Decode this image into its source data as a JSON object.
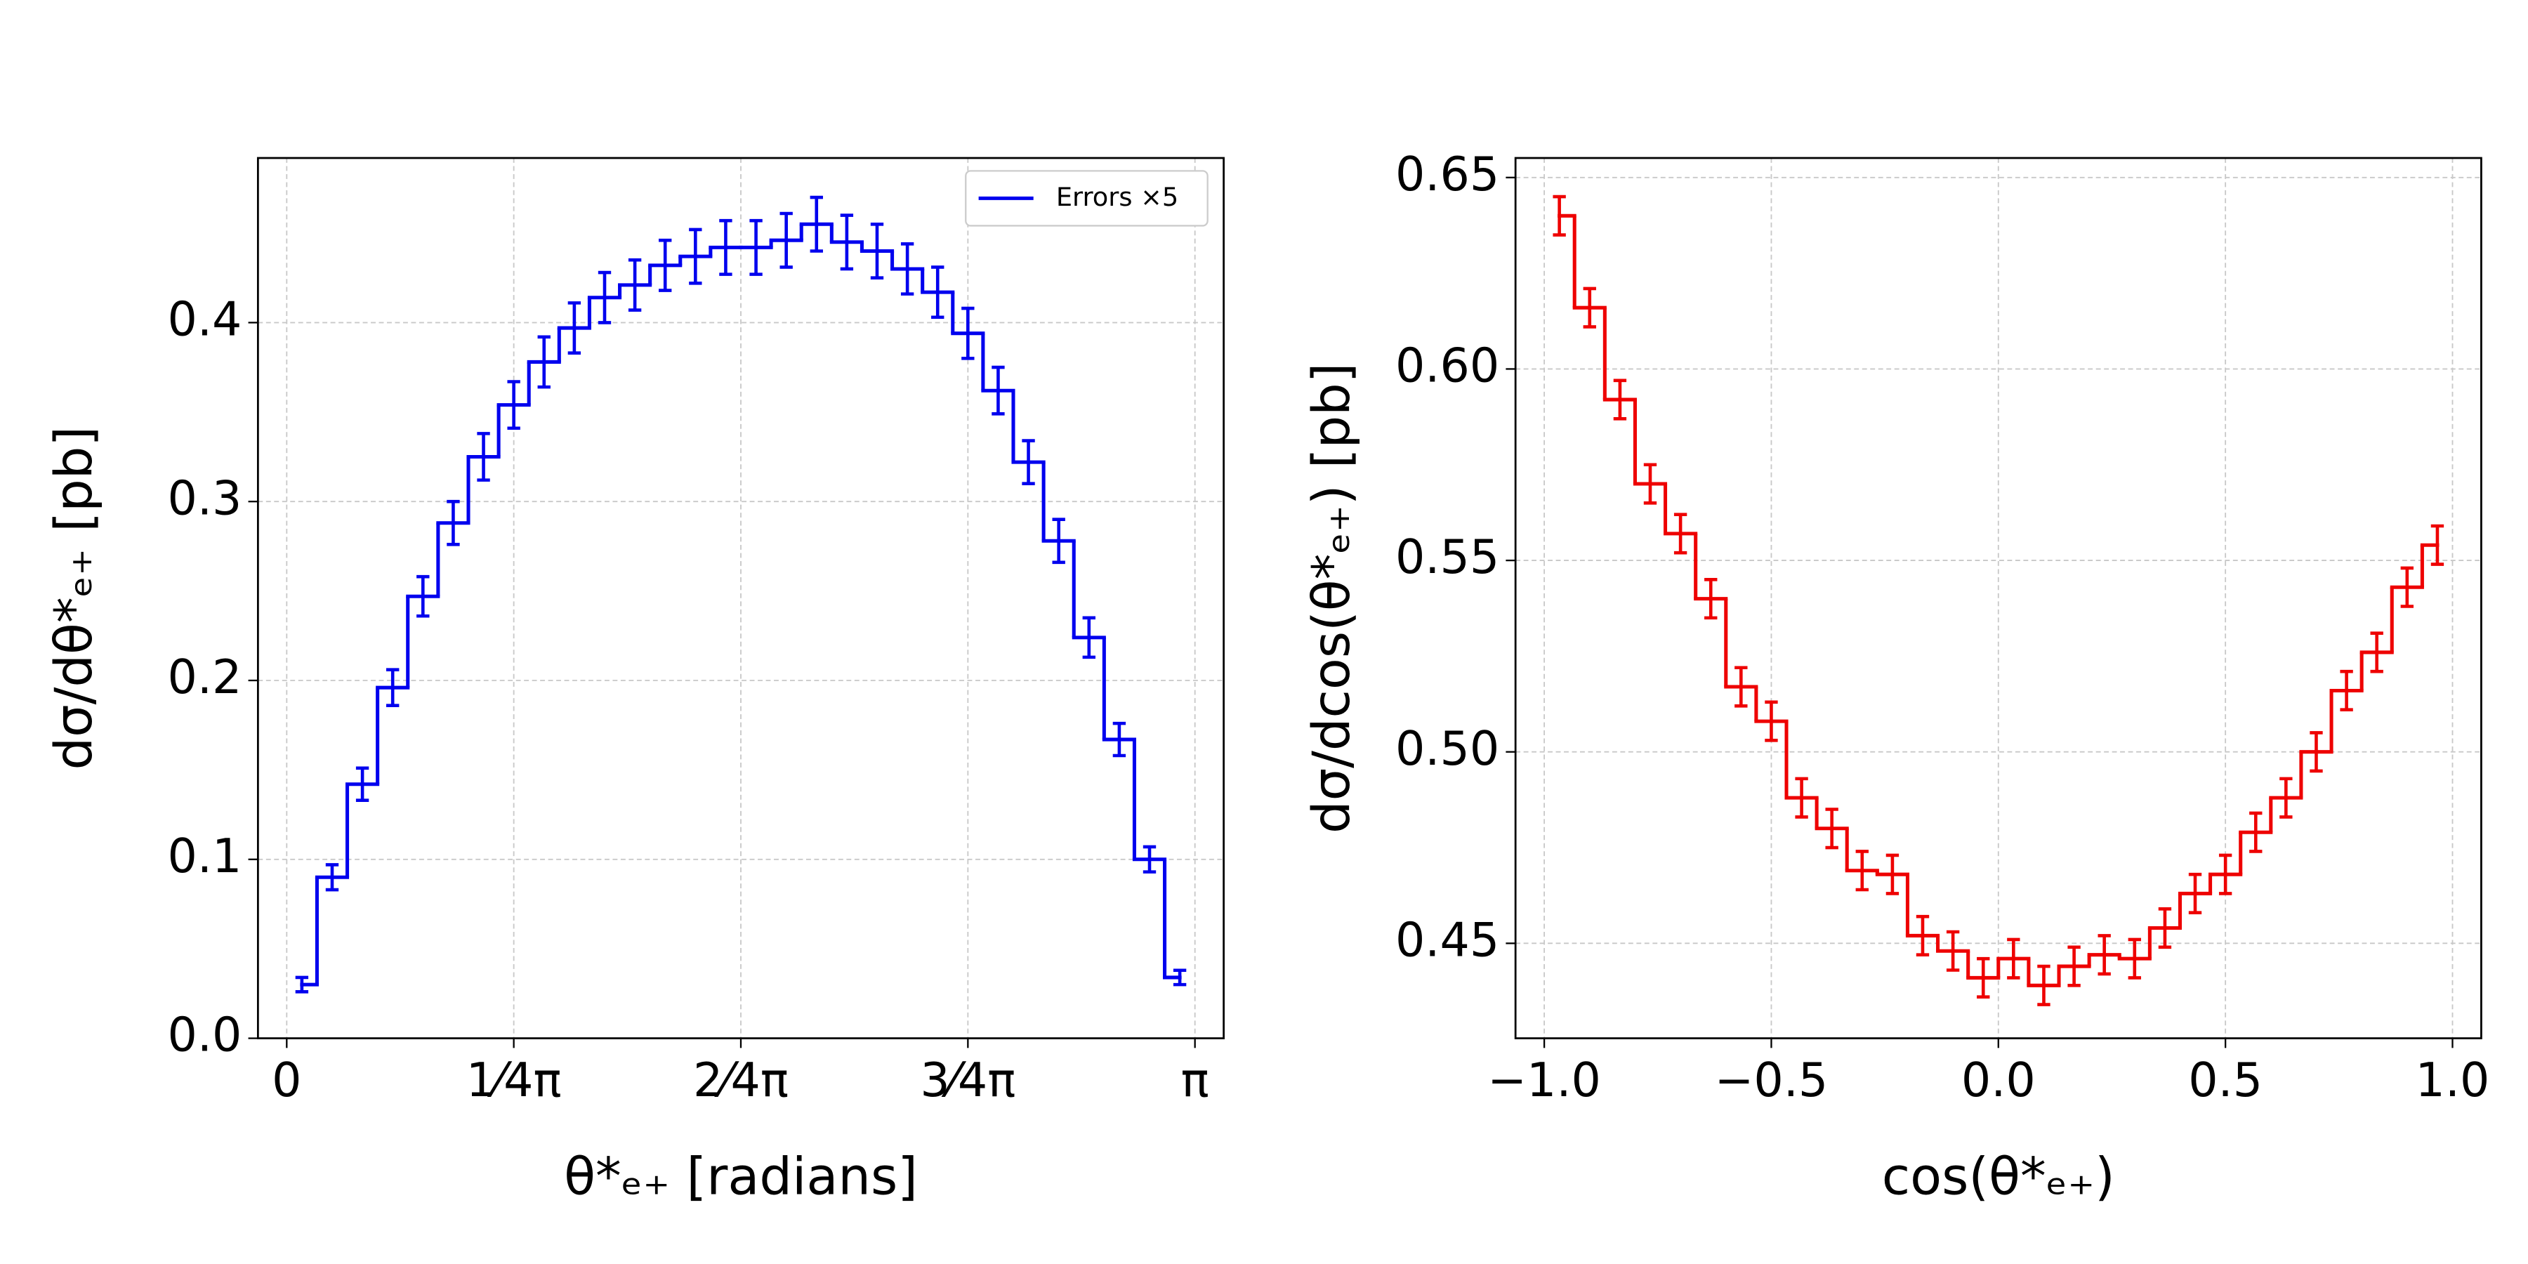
{
  "chart_data": [
    {
      "type": "step",
      "xlabel": "θ*ₑ₊ [radians]",
      "ylabel": "dσ/dθ*ₑ₊ [pb]",
      "x": [
        0.0524,
        0.1571,
        0.2618,
        0.3665,
        0.4712,
        0.576,
        0.6807,
        0.7854,
        0.8901,
        0.9948,
        1.0996,
        1.2043,
        1.309,
        1.4137,
        1.5184,
        1.6232,
        1.7279,
        1.8326,
        1.9373,
        2.042,
        2.1468,
        2.2515,
        2.3562,
        2.4609,
        2.5656,
        2.6704,
        2.7751,
        2.8798,
        2.9845,
        3.0892
      ],
      "series": [
        {
          "name": "Errors ×5",
          "color": "#0000ee",
          "values": [
            0.03,
            0.09,
            0.142,
            0.196,
            0.247,
            0.288,
            0.325,
            0.354,
            0.378,
            0.397,
            0.414,
            0.421,
            0.432,
            0.437,
            0.442,
            0.442,
            0.446,
            0.455,
            0.445,
            0.44,
            0.43,
            0.417,
            0.394,
            0.362,
            0.322,
            0.278,
            0.224,
            0.167,
            0.1,
            0.034
          ],
          "errors": [
            0.004,
            0.007,
            0.009,
            0.01,
            0.011,
            0.012,
            0.013,
            0.013,
            0.014,
            0.014,
            0.014,
            0.014,
            0.014,
            0.015,
            0.015,
            0.015,
            0.015,
            0.015,
            0.015,
            0.015,
            0.014,
            0.014,
            0.014,
            0.013,
            0.012,
            0.012,
            0.011,
            0.009,
            0.007,
            0.004
          ]
        }
      ],
      "xlim": [
        -0.0995,
        3.241
      ],
      "ylim": [
        0,
        0.492
      ],
      "xticks": [
        0,
        {
          "value": 0.7853981633974483,
          "label": "1⁄4π"
        },
        {
          "value": 1.5707963267948966,
          "label": "2⁄4π"
        },
        {
          "value": 2.356194490192345,
          "label": "3⁄4π"
        },
        {
          "value": 3.141592653589793,
          "label": "π"
        }
      ],
      "yticks": [
        {
          "value": 0,
          "label": "0.0"
        },
        0.1,
        0.2,
        0.3,
        0.4
      ],
      "grid": true,
      "legend": "upper right"
    },
    {
      "type": "step",
      "xlabel": "cos(θ*ₑ₊)",
      "ylabel": "dσ/dcos(θ*ₑ₊) [pb]",
      "x": [
        -0.9667,
        -0.9,
        -0.8333,
        -0.7667,
        -0.7,
        -0.6333,
        -0.5667,
        -0.5,
        -0.4333,
        -0.3667,
        -0.3,
        -0.2333,
        -0.1667,
        -0.1,
        -0.0333,
        0.0333,
        0.1,
        0.1667,
        0.2333,
        0.3,
        0.3667,
        0.4333,
        0.5,
        0.5667,
        0.6333,
        0.7,
        0.7667,
        0.8333,
        0.9,
        0.9667
      ],
      "color": "#ee0000",
      "values": [
        0.64,
        0.616,
        0.592,
        0.57,
        0.557,
        0.54,
        0.517,
        0.508,
        0.488,
        0.48,
        0.469,
        0.468,
        0.452,
        0.448,
        0.441,
        0.446,
        0.439,
        0.444,
        0.447,
        0.446,
        0.454,
        0.463,
        0.468,
        0.479,
        0.488,
        0.5,
        0.516,
        0.526,
        0.543,
        0.554
      ],
      "errors": [
        0.005,
        0.005,
        0.005,
        0.005,
        0.005,
        0.005,
        0.005,
        0.005,
        0.005,
        0.005,
        0.005,
        0.005,
        0.005,
        0.005,
        0.005,
        0.005,
        0.005,
        0.005,
        0.005,
        0.005,
        0.005,
        0.005,
        0.005,
        0.005,
        0.005,
        0.005,
        0.005,
        0.005,
        0.005,
        0.005
      ],
      "xlim": [
        -1.0633,
        1.0633
      ],
      "ylim": [
        0.4252,
        0.6551
      ],
      "xticks": [
        {
          "value": -1.0,
          "label": "−1.0"
        },
        {
          "value": -0.5,
          "label": "−0.5"
        },
        {
          "value": 0.0,
          "label": "0.0"
        },
        0.5,
        {
          "value": 1.0,
          "label": "1.0"
        }
      ],
      "yticks": [
        0.45,
        {
          "value": 0.5,
          "label": "0.50"
        },
        0.55,
        {
          "value": 0.6,
          "label": "0.60"
        },
        0.65
      ],
      "grid": true
    }
  ]
}
